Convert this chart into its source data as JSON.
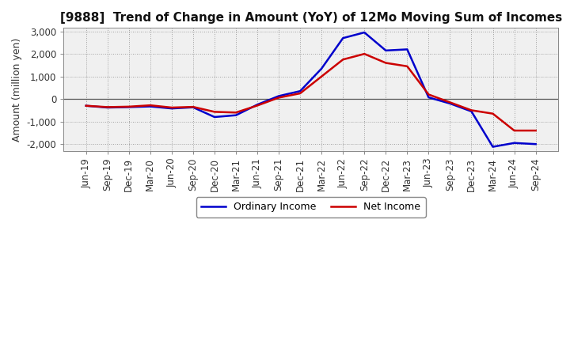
{
  "title": "[9888]  Trend of Change in Amount (YoY) of 12Mo Moving Sum of Incomes",
  "ylabel": "Amount (million yen)",
  "xlabels": [
    "Jun-19",
    "Sep-19",
    "Dec-19",
    "Mar-20",
    "Jun-20",
    "Sep-20",
    "Dec-20",
    "Mar-21",
    "Jun-21",
    "Sep-21",
    "Dec-21",
    "Mar-22",
    "Jun-22",
    "Sep-22",
    "Dec-22",
    "Mar-23",
    "Jun-23",
    "Sep-23",
    "Dec-23",
    "Mar-24",
    "Jun-24",
    "Sep-24"
  ],
  "ordinary_income": [
    -300,
    -380,
    -360,
    -330,
    -420,
    -370,
    -800,
    -720,
    -250,
    130,
    350,
    1350,
    2700,
    2950,
    2150,
    2200,
    70,
    -200,
    -550,
    -2120,
    -1950,
    -2000
  ],
  "net_income": [
    -300,
    -360,
    -340,
    -280,
    -380,
    -350,
    -570,
    -600,
    -290,
    60,
    250,
    1000,
    1750,
    2000,
    1600,
    1450,
    200,
    -150,
    -500,
    -650,
    -1400,
    -1400
  ],
  "ordinary_color": "#0000CC",
  "net_color": "#CC0000",
  "ylim": [
    -2300,
    3150
  ],
  "yticks": [
    -2000,
    -1000,
    0,
    1000,
    2000,
    3000
  ],
  "background_color": "#FFFFFF",
  "plot_bg_color": "#F0F0F0",
  "grid_color": "#888888",
  "line_width": 1.8,
  "title_fontsize": 11,
  "axis_fontsize": 8.5,
  "ylabel_fontsize": 9
}
